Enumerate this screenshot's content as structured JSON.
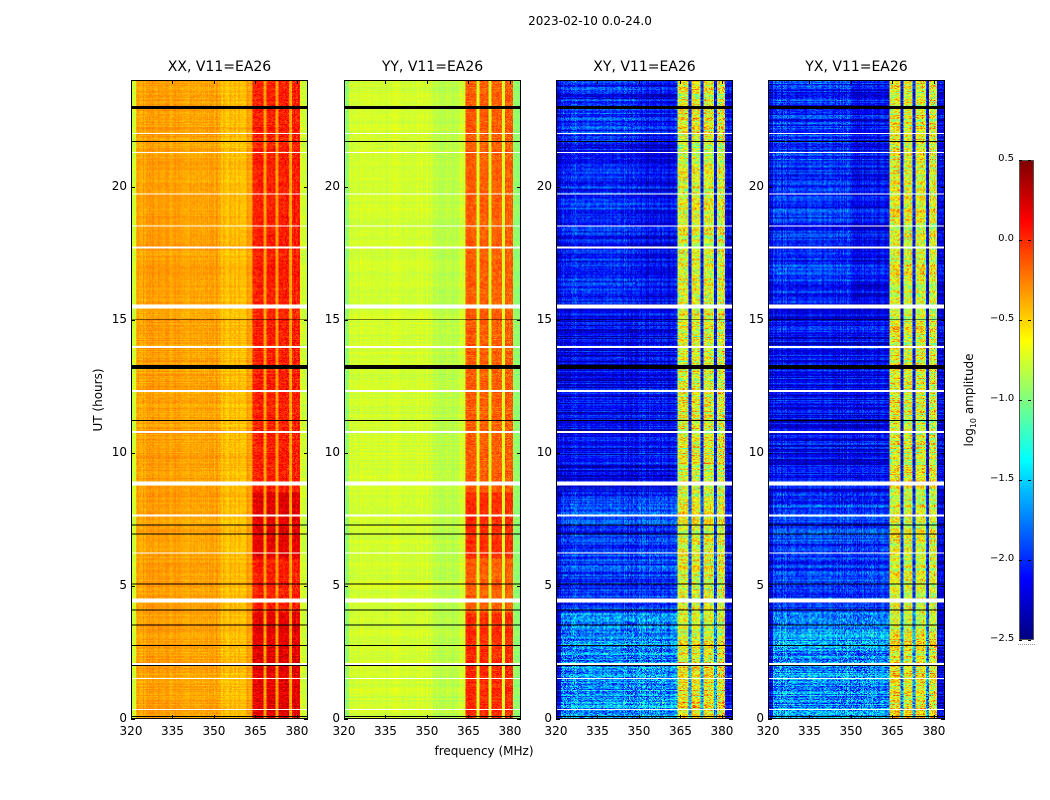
{
  "figure": {
    "suptitle": "2023-02-10 0.0-24.0",
    "xlabel": "frequency (MHz)",
    "ylabel": "UT (hours)"
  },
  "colorbar": {
    "label_prefix": "log",
    "label_sub": "10",
    "label_suffix": " amplitude",
    "colormap": "jet",
    "range": [
      -2.5,
      0.5
    ],
    "ticks": [
      "0.5",
      "0.0",
      "−0.5",
      "−1.0",
      "−1.5",
      "−2.0",
      "−2.5"
    ],
    "tick_values": [
      0.5,
      0.0,
      -0.5,
      -1.0,
      -1.5,
      -2.0,
      -2.5
    ]
  },
  "chart_data": [
    {
      "type": "heatmap",
      "title": "XX, V11=EA26",
      "xlabel": "",
      "ylabel": "UT (hours)",
      "xlim": [
        320,
        384
      ],
      "ylim": [
        0,
        24
      ],
      "xticks": [
        "320",
        "335",
        "350",
        "365",
        "380"
      ],
      "xtick_values": [
        320,
        335,
        350,
        365,
        380
      ],
      "yticks": [
        "0",
        "5",
        "10",
        "15",
        "20"
      ],
      "ytick_values": [
        0,
        5,
        10,
        15,
        20
      ],
      "z_range": [
        -2.5,
        0.5
      ],
      "base_level": -0.35,
      "edge_level": -0.75,
      "band_level": 0.05,
      "noise": 0.12
    },
    {
      "type": "heatmap",
      "title": "YY, V11=EA26",
      "xlabel": "frequency (MHz)",
      "ylabel": "",
      "xlim": [
        320,
        384
      ],
      "ylim": [
        0,
        24
      ],
      "xticks": [
        "320",
        "335",
        "350",
        "365",
        "380"
      ],
      "xtick_values": [
        320,
        335,
        350,
        365,
        380
      ],
      "yticks": [
        "0",
        "5",
        "10",
        "15",
        "20"
      ],
      "ytick_values": [
        0,
        5,
        10,
        15,
        20
      ],
      "z_range": [
        -2.5,
        0.5
      ],
      "base_level": -0.75,
      "edge_level": -0.95,
      "band_level": -0.15,
      "noise": 0.1
    },
    {
      "type": "heatmap",
      "title": "XY, V11=EA26",
      "xlabel": "",
      "ylabel": "",
      "xlim": [
        320,
        384
      ],
      "ylim": [
        0,
        24
      ],
      "xticks": [
        "320",
        "335",
        "350",
        "365",
        "380"
      ],
      "xtick_values": [
        320,
        335,
        350,
        365,
        380
      ],
      "yticks": [
        "0",
        "5",
        "10",
        "15",
        "20"
      ],
      "ytick_values": [
        0,
        5,
        10,
        15,
        20
      ],
      "z_range": [
        -2.5,
        0.5
      ],
      "base_level": -2.15,
      "edge_level": -2.2,
      "band_level": -0.7,
      "noise": 0.3
    },
    {
      "type": "heatmap",
      "title": "YX, V11=EA26",
      "xlabel": "",
      "ylabel": "",
      "xlim": [
        320,
        384
      ],
      "ylim": [
        0,
        24
      ],
      "xticks": [
        "320",
        "335",
        "350",
        "365",
        "380"
      ],
      "xtick_values": [
        320,
        335,
        350,
        365,
        380
      ],
      "yticks": [
        "0",
        "5",
        "10",
        "15",
        "20"
      ],
      "ytick_values": [
        0,
        5,
        10,
        15,
        20
      ],
      "z_range": [
        -2.5,
        0.5
      ],
      "base_level": -2.15,
      "edge_level": -2.2,
      "band_level": -0.7,
      "noise": 0.3
    }
  ],
  "structure": {
    "rfi_bands_mhz": [
      [
        364,
        368
      ],
      [
        369,
        372.5
      ],
      [
        373.5,
        377.5
      ],
      [
        378.5,
        381.5
      ]
    ],
    "flagged_white_hours": [
      [
        15.45,
        15.6
      ],
      [
        8.75,
        8.9
      ],
      [
        4.35,
        4.5
      ],
      [
        0.3,
        0.35
      ],
      [
        18.5,
        18.55
      ],
      [
        17.7,
        17.75
      ],
      [
        22.0,
        22.05
      ],
      [
        21.3,
        21.35
      ],
      [
        19.7,
        19.75
      ],
      [
        13.95,
        14.0
      ],
      [
        12.3,
        12.35
      ],
      [
        10.75,
        10.8
      ],
      [
        7.6,
        7.65
      ],
      [
        6.2,
        6.25
      ],
      [
        2.0,
        2.05
      ],
      [
        1.45,
        1.5
      ]
    ],
    "flagged_black_hours": [
      [
        22.95,
        23.05
      ],
      [
        13.15,
        13.3
      ],
      [
        21.7,
        21.75
      ],
      [
        18.5,
        18.52
      ],
      [
        15.0,
        15.03
      ],
      [
        14.6,
        14.62
      ],
      [
        11.2,
        11.23
      ],
      [
        10.2,
        10.23
      ],
      [
        9.15,
        9.18
      ],
      [
        7.25,
        7.28
      ],
      [
        6.9,
        6.93
      ],
      [
        5.05,
        5.08
      ],
      [
        4.05,
        4.1
      ],
      [
        3.85,
        3.88
      ],
      [
        3.5,
        3.53
      ],
      [
        3.1,
        3.13
      ],
      [
        2.7,
        2.73
      ],
      [
        2.35,
        2.38
      ],
      [
        1.95,
        1.98
      ],
      [
        1.6,
        1.63
      ],
      [
        1.15,
        1.18
      ],
      [
        0.55,
        0.58
      ],
      [
        0.05,
        0.09
      ]
    ]
  }
}
